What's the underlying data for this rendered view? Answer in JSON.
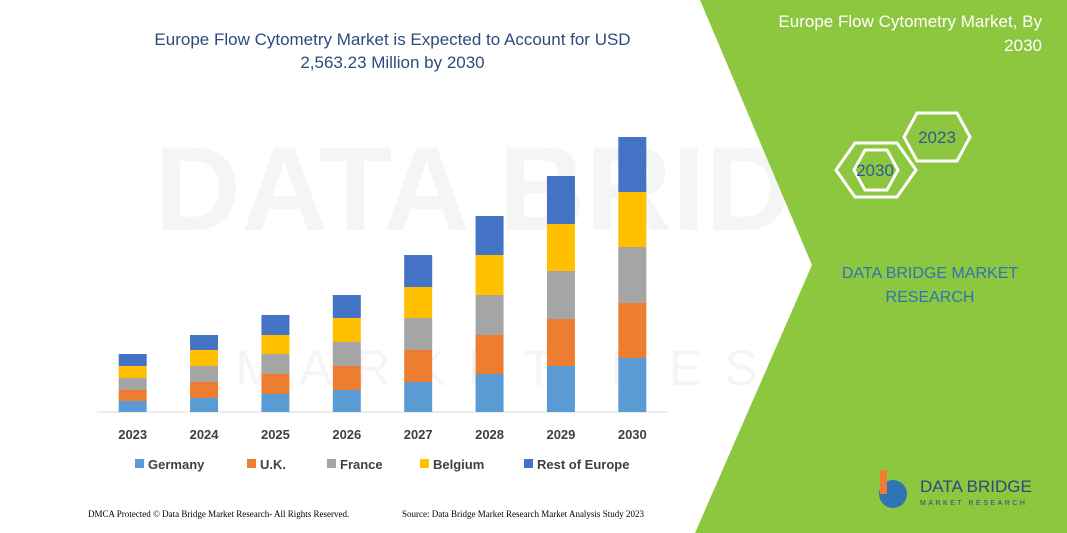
{
  "chart_data": {
    "type": "bar",
    "stacked": true,
    "title": "Europe Flow Cytometry Market is Expected to Account for USD 2,563.23 Million by 2030",
    "categories": [
      "2023",
      "2024",
      "2025",
      "2026",
      "2027",
      "2028",
      "2029",
      "2030"
    ],
    "series": [
      {
        "name": "Germany",
        "color": "#5b9bd5",
        "values": [
          11,
          14,
          18,
          22,
          30,
          38,
          46,
          54
        ]
      },
      {
        "name": "U.K.",
        "color": "#ed7d31",
        "values": [
          11,
          16,
          20,
          24,
          32,
          39,
          47,
          55
        ]
      },
      {
        "name": "France",
        "color": "#a5a5a5",
        "values": [
          12,
          16,
          20,
          24,
          32,
          40,
          48,
          56
        ]
      },
      {
        "name": "Belgium",
        "color": "#ffc000",
        "values": [
          12,
          16,
          19,
          24,
          31,
          40,
          47,
          55
        ]
      },
      {
        "name": "Rest of Europe",
        "color": "#4472c4",
        "values": [
          12,
          15,
          20,
          23,
          32,
          39,
          48,
          55
        ]
      }
    ],
    "ylim": [
      0,
      290
    ]
  },
  "watermark": {
    "brand": "DATA BRIDGE",
    "tagline": "MARKET RESEARCH"
  },
  "panel": {
    "title": "Europe Flow Cytometry Market, By 2030",
    "hexagons": [
      "2023",
      "2030"
    ],
    "brand": "DATA BRIDGE MARKET RESEARCH"
  },
  "logo": {
    "name": "DATA BRIDGE",
    "tagline": "MARKET RESEARCH"
  },
  "footer": {
    "copyright": "DMCA Protected © Data Bridge Market Research- All Rights Reserved.",
    "source": "Source: Data Bridge Market Research Market Analysis Study 2023"
  }
}
